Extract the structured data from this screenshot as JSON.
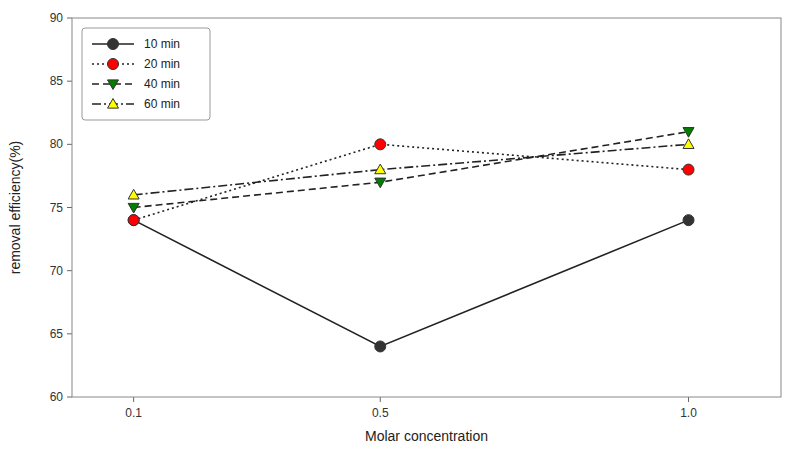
{
  "chart_data": {
    "type": "line",
    "x": [
      0.1,
      0.5,
      1.0
    ],
    "xlim": [
      0,
      1.15
    ],
    "xticks": [
      0.1,
      0.5,
      {
        "value": 1.0,
        "label": "1.0"
      }
    ],
    "ylim": [
      60,
      90
    ],
    "yticks": [
      60,
      65,
      70,
      75,
      80,
      85,
      90
    ],
    "xlabel": "Molar concentration",
    "ylabel": "removal efficiency(%)",
    "series": [
      {
        "name": "10 min",
        "values": [
          74.0,
          64.0,
          74.0
        ],
        "color": "#333333",
        "line_style": "solid",
        "marker": "circle"
      },
      {
        "name": "20 min",
        "values": [
          74.0,
          80.0,
          78.0
        ],
        "color": "red",
        "line_style": "dotted",
        "marker": "circle"
      },
      {
        "name": "40 min",
        "values": [
          75.0,
          77.0,
          81.0
        ],
        "color": "green",
        "line_style": "dashed",
        "marker": "triangle-down"
      },
      {
        "name": "60 min",
        "values": [
          76.0,
          78.0,
          80.0
        ],
        "color": "yellow",
        "line_style": "dashdot",
        "marker": "triangle-up"
      }
    ],
    "legend": "upper left",
    "grid": false
  }
}
